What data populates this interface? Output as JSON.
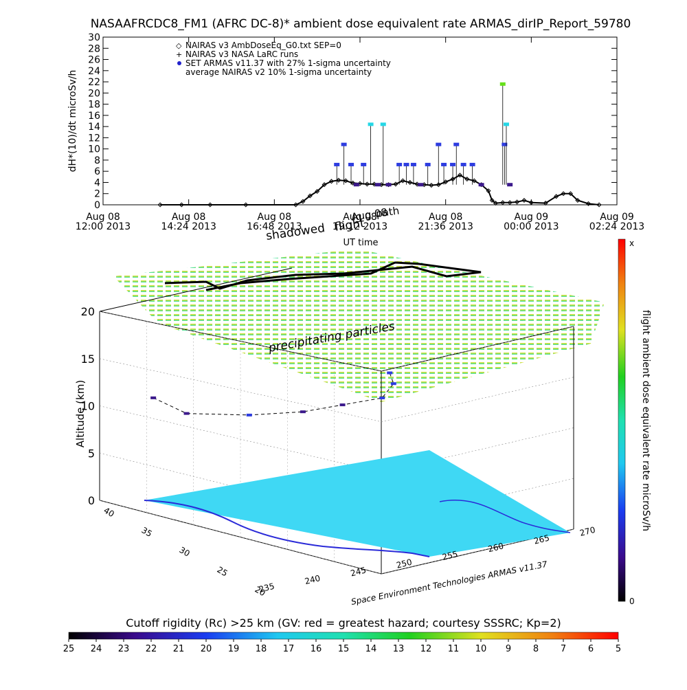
{
  "title": "NASAAFRCDC8_FM1 (AFRC DC-8)* ambient dose equivalent rate ARMAS_dirIP_Report_59780",
  "colors": {
    "time_series_line": "#000000",
    "armas_low": "#3c1a8c",
    "armas_mid": "#2e3de0",
    "armas_high": "#25d7e6",
    "armas_peak": "#66e01a",
    "ground_fill": "#3fd8f4",
    "coast_line": "#2a2ad8"
  },
  "chart_data": [
    {
      "type": "scatter",
      "title": "NASAAFRCDC8_FM1 (AFRC DC-8)* ambient dose equivalent rate ARMAS_dirIP_Report_59780",
      "ylabel": "dH*(10)/dt microSv/h",
      "xlabel": "UT time",
      "ylim": [
        0,
        30
      ],
      "yticks": [
        "0",
        "2",
        "4",
        "6",
        "8",
        "10",
        "12",
        "14",
        "16",
        "18",
        "20",
        "22",
        "24",
        "26",
        "28",
        "30"
      ],
      "xticks": [
        {
          "date": "Aug 08",
          "time": "12:00 2013"
        },
        {
          "date": "Aug 08",
          "time": "14:24 2013"
        },
        {
          "date": "Aug 08",
          "time": "16:48 2013"
        },
        {
          "date": "Aug 08",
          "time": "19:12 2013"
        },
        {
          "date": "Aug 08",
          "time": "21:36 2013"
        },
        {
          "date": "Aug 09",
          "time": "00:00 2013"
        },
        {
          "date": "Aug 09",
          "time": "02:24 2013"
        }
      ],
      "xlim_hours_from_aug08_1200": [
        0,
        14.4
      ],
      "legend": [
        {
          "symbol": "◇",
          "label": "NAIRAS v3 AmbDoseEq_G0.txt SEP=0"
        },
        {
          "symbol": "+",
          "label": "NAIRAS v3 NASA LaRC runs"
        },
        {
          "symbol": "●",
          "label": "SET ARMAS v11.37 with 27% 1-sigma uncertainty"
        },
        {
          "symbol": "",
          "label": "average NAIRAS v2 10% 1-sigma uncertainty"
        }
      ],
      "annotations": [
        "Aug 08",
        "shadowed",
        "Aug 08",
        "path",
        "flight"
      ],
      "series": [
        {
          "name": "NAIRAS v3 AmbDoseEq_G0.txt SEP=0",
          "points": [
            [
              1.6,
              0
            ],
            [
              2.2,
              0
            ],
            [
              3,
              0
            ],
            [
              4,
              0
            ],
            [
              5.4,
              0
            ],
            [
              5.6,
              0.6
            ],
            [
              5.8,
              1.6
            ],
            [
              6.0,
              2.4
            ],
            [
              6.2,
              3.6
            ],
            [
              6.4,
              4.2
            ],
            [
              6.6,
              4.4
            ],
            [
              6.8,
              4.3
            ],
            [
              7.0,
              3.9
            ],
            [
              7.2,
              3.8
            ],
            [
              7.4,
              3.7
            ],
            [
              7.6,
              3.7
            ],
            [
              7.8,
              3.6
            ],
            [
              8.0,
              3.6
            ],
            [
              8.2,
              3.7
            ],
            [
              8.4,
              4.3
            ],
            [
              8.6,
              4.0
            ],
            [
              8.8,
              3.7
            ],
            [
              9.0,
              3.6
            ],
            [
              9.2,
              3.5
            ],
            [
              9.4,
              3.6
            ],
            [
              9.6,
              4.1
            ],
            [
              9.8,
              4.6
            ],
            [
              10.0,
              5.3
            ],
            [
              10.2,
              4.6
            ],
            [
              10.4,
              4.3
            ],
            [
              10.6,
              3.6
            ],
            [
              10.8,
              2.5
            ],
            [
              10.9,
              0.8
            ],
            [
              11.0,
              0.3
            ],
            [
              11.2,
              0.4
            ],
            [
              11.4,
              0.4
            ],
            [
              11.6,
              0.5
            ],
            [
              11.8,
              0.8
            ],
            [
              12.0,
              0.4
            ],
            [
              12.4,
              0.3
            ],
            [
              12.7,
              1.5
            ],
            [
              12.9,
              2.0
            ],
            [
              13.1,
              2.0
            ],
            [
              13.3,
              0.8
            ],
            [
              13.6,
              0.2
            ],
            [
              13.9,
              0
            ]
          ]
        },
        {
          "name": "SET ARMAS v11.37 with 27% 1-sigma uncertainty",
          "points": [
            [
              6.55,
              7.2
            ],
            [
              6.75,
              10.8
            ],
            [
              6.95,
              7.2
            ],
            [
              7.1,
              3.6
            ],
            [
              7.3,
              7.2
            ],
            [
              7.5,
              14.4
            ],
            [
              7.7,
              3.6
            ],
            [
              7.85,
              14.4
            ],
            [
              8.0,
              3.6
            ],
            [
              8.3,
              7.2
            ],
            [
              8.5,
              7.2
            ],
            [
              8.7,
              7.2
            ],
            [
              8.9,
              3.6
            ],
            [
              9.1,
              7.2
            ],
            [
              9.4,
              10.8
            ],
            [
              9.55,
              7.2
            ],
            [
              9.8,
              7.2
            ],
            [
              9.9,
              10.8
            ],
            [
              10.1,
              7.2
            ],
            [
              10.35,
              7.2
            ],
            [
              10.6,
              3.6
            ],
            [
              11.2,
              21.6
            ],
            [
              11.25,
              10.8
            ],
            [
              11.3,
              14.4
            ],
            [
              11.4,
              3.6
            ]
          ]
        }
      ]
    },
    {
      "type": "scatter",
      "title": "",
      "zlabel": "Altitude (km)",
      "zlim": [
        0,
        20
      ],
      "zticks": [
        "0",
        "5",
        "10",
        "15",
        "20"
      ],
      "lat_ticks": [
        "40",
        "35",
        "30",
        "25",
        "20"
      ],
      "lon_ticks": [
        "235",
        "240",
        "245",
        "250",
        "255",
        "260",
        "265",
        "270"
      ],
      "annotation": "precipitating particles",
      "credit": "Space Environment Technologies ARMAS v11.37",
      "colorbar": {
        "label": "flight ambient dose equivalent rate microSv/h",
        "top": "x",
        "bottom": "0"
      },
      "flight_track": [
        {
          "lon": 240,
          "lat": 38,
          "alt": 11,
          "dose": 3.6
        },
        {
          "lon": 241,
          "lat": 36,
          "alt": 10,
          "dose": 3.6
        },
        {
          "lon": 245,
          "lat": 33,
          "alt": 10.5,
          "dose": 7.2
        },
        {
          "lon": 250,
          "lat": 31,
          "alt": 11,
          "dose": 3.6
        },
        {
          "lon": 255,
          "lat": 30,
          "alt": 11.5,
          "dose": 3.6
        },
        {
          "lon": 260,
          "lat": 29,
          "alt": 12,
          "dose": 7.2
        },
        {
          "lon": 265,
          "lat": 30,
          "alt": 12.5,
          "dose": 10.8
        },
        {
          "lon": 267,
          "lat": 31,
          "alt": 13,
          "dose": 7.2
        }
      ]
    }
  ],
  "cutoff_legend": {
    "title": "Cutoff rigidity (Rc) >25 km (GV: red = greatest hazard; courtesy SSSRC; Kp=2)",
    "ticks": [
      "25",
      "24",
      "23",
      "22",
      "21",
      "20",
      "19",
      "18",
      "17",
      "16",
      "15",
      "14",
      "13",
      "12",
      "11",
      "10",
      "9",
      "8",
      "7",
      "6",
      "5"
    ]
  }
}
